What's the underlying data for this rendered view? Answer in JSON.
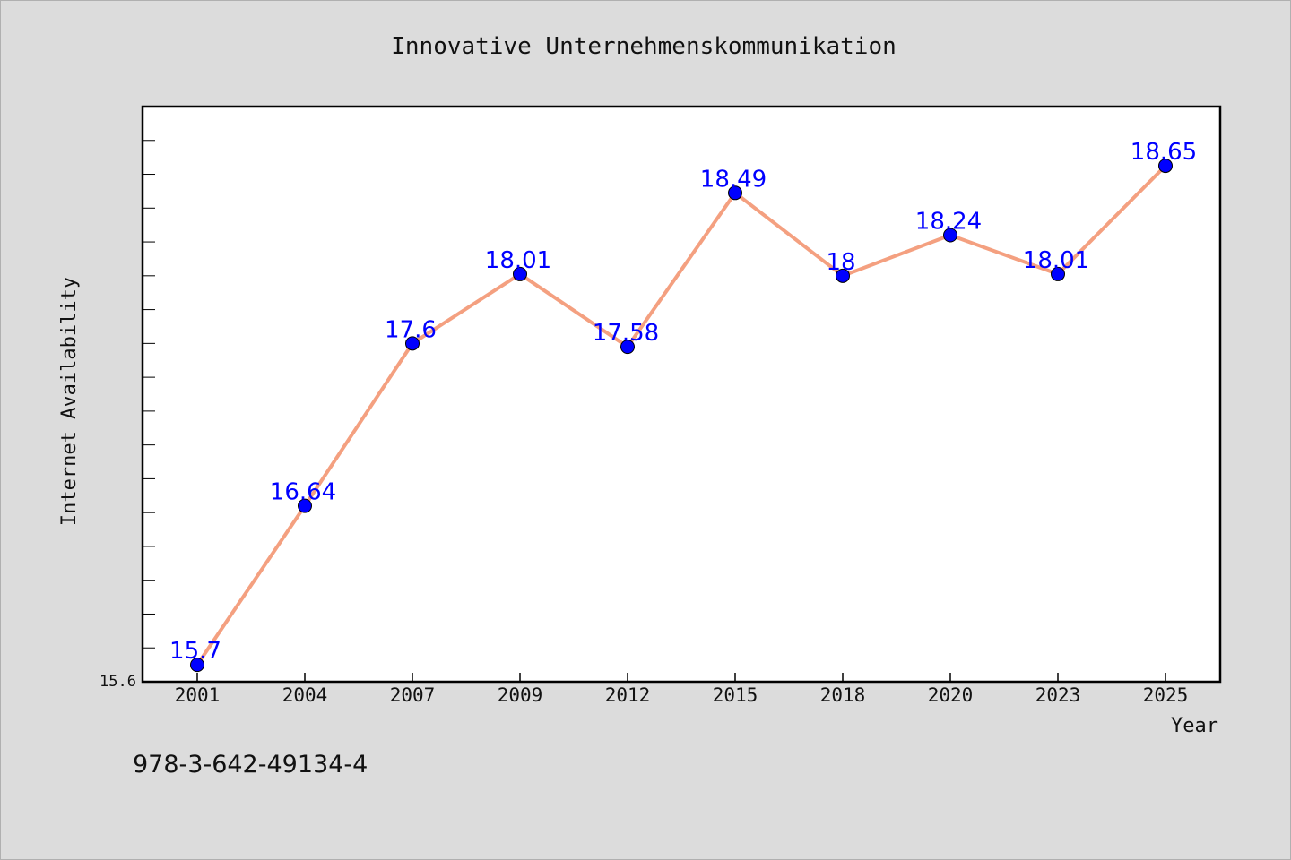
{
  "chart_data": {
    "type": "line",
    "title": "Innovative Unternehmenskommunikation",
    "xlabel": "Year",
    "ylabel": "Internet Availability",
    "categories": [
      "2001",
      "2004",
      "2007",
      "2009",
      "2012",
      "2015",
      "2018",
      "2020",
      "2023",
      "2025"
    ],
    "series": [
      {
        "values": [
          15.7,
          16.64,
          17.6,
          18.01,
          17.58,
          18.49,
          18,
          18.24,
          18.01,
          18.65
        ],
        "labels": [
          "15.7",
          "16.64",
          "17.6",
          "18.01",
          "17.58",
          "18.49",
          "18",
          "18.24",
          "18.01",
          "18.65"
        ],
        "line_color": "#f4a080",
        "marker_color": "#0000ff"
      }
    ],
    "ylim": [
      15.6,
      19.0
    ],
    "yticks_labeled": [
      "15.6"
    ],
    "grid": false,
    "legend": "none"
  },
  "footer": {
    "isbn": "978-3-642-49134-4"
  }
}
